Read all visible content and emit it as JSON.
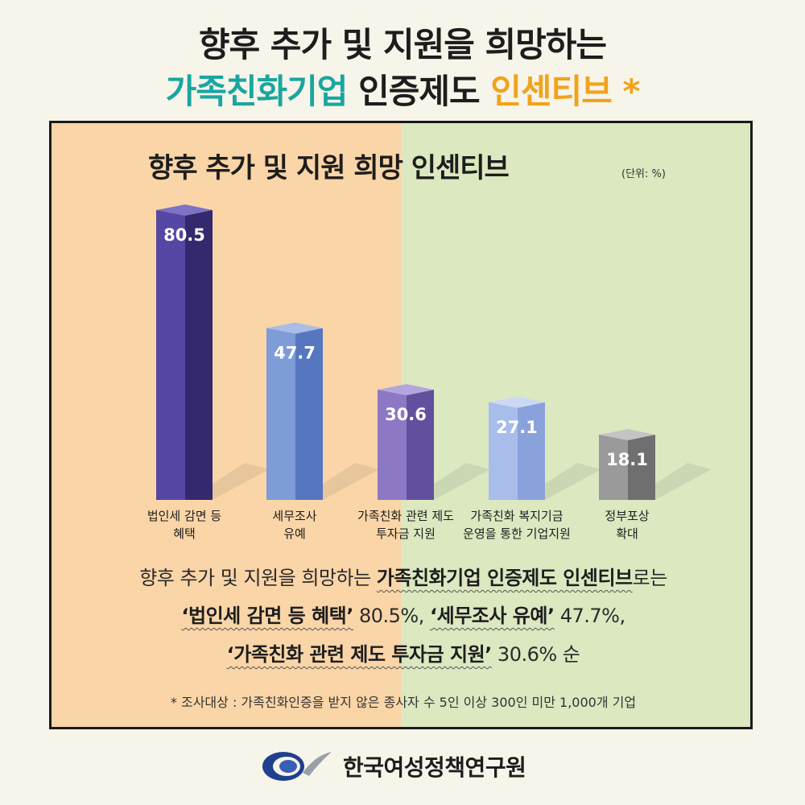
{
  "header": {
    "line1": "향후 추가 및 지원을 희망하는",
    "line2_part1": "가족친화기업",
    "line2_part2": "인증제도",
    "line2_part3": "인센티브 *"
  },
  "chart_data": {
    "type": "bar",
    "title": "향후 추가 및 지원 희망 인센티브",
    "unit": "(단위: %)",
    "categories": [
      [
        "법인세 감면 등",
        "혜택"
      ],
      [
        "세무조사",
        "유예"
      ],
      [
        "가족친화 관련 제도",
        "투자금 지원"
      ],
      [
        "가족친화 복지기금",
        "운영을 통한 기업지원"
      ],
      [
        "정부포상",
        "확대"
      ]
    ],
    "values": [
      80.5,
      47.7,
      30.6,
      27.1,
      18.1
    ],
    "value_labels": [
      "80.5",
      "47.7",
      "30.6",
      "27.1",
      "18.1"
    ],
    "colors": [
      {
        "front": "#5547a3",
        "side": "#34286f",
        "top": "#7e72c4"
      },
      {
        "front": "#7d9cd8",
        "side": "#5677bf",
        "top": "#a9bde6"
      },
      {
        "front": "#8c78c4",
        "side": "#62509e",
        "top": "#b3a6dd"
      },
      {
        "front": "#a9bdeb",
        "side": "#8aa2dc",
        "top": "#ccd8f4"
      },
      {
        "front": "#9a9a9a",
        "side": "#6f6f6f",
        "top": "#c4c4c4"
      }
    ],
    "ylim": [
      0,
      80.5
    ]
  },
  "summary": {
    "l1_a": "향후 추가 및 지원을 희망하는 ",
    "l1_b": "가족친화기업 인증제도 인센티브",
    "l1_c": "로는",
    "l2_a": "‘법인세 감면 등 혜택’",
    "l2_b": " 80.5%, ",
    "l2_c": "‘세무조사 유예’",
    "l2_d": " 47.7%,",
    "l3_a": "‘가족친화 관련 제도 투자금 지원’",
    "l3_b": " 30.6% 순"
  },
  "footnote": "* 조사대상 : 가족친화인증을 받지 않은 종사자 수 5인 이상 300인 미만 1,000개 기업",
  "logo": {
    "name": "한국여성정책연구원"
  }
}
